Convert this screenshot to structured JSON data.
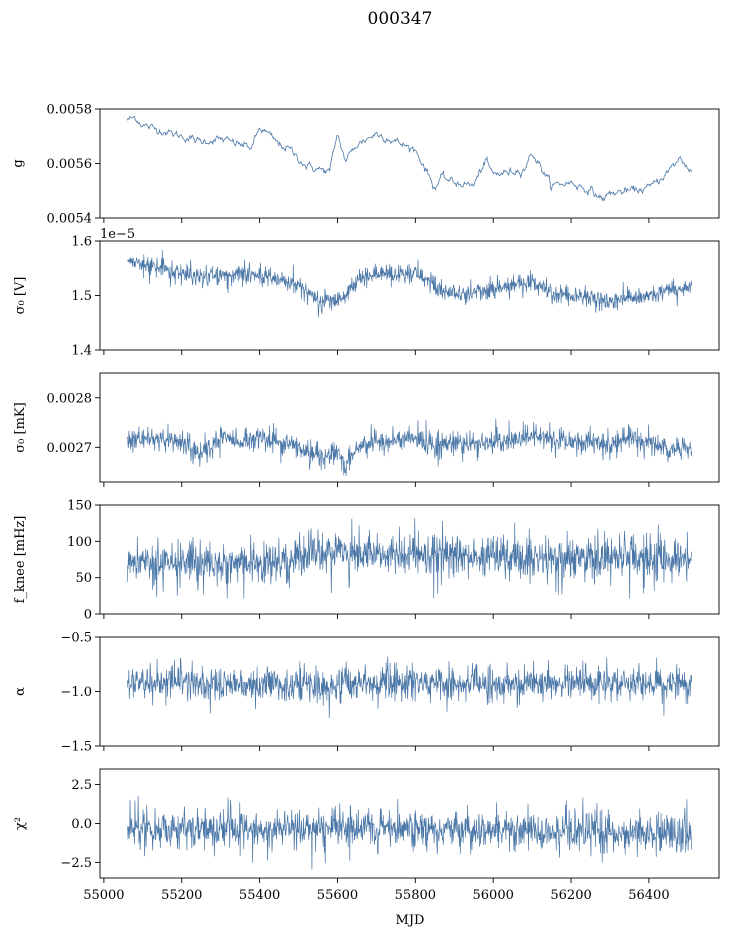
{
  "figure": {
    "title": "000347",
    "xlabel": "MJD",
    "xlim": [
      54990,
      56580
    ],
    "xticks": [
      "55000",
      "55200",
      "55400",
      "55600",
      "55800",
      "56000",
      "56200",
      "56400"
    ],
    "series_color": "#4c78a8"
  },
  "chart_data": [
    {
      "type": "line",
      "ylabel": "g",
      "ylim": [
        0.0054,
        0.0058
      ],
      "yticks": [
        "0.0054",
        "0.0056",
        "0.0058"
      ],
      "offset_text": "",
      "noise": 6e-06,
      "x": [
        55060,
        55080,
        55100,
        55150,
        55200,
        55250,
        55300,
        55350,
        55380,
        55400,
        55420,
        55450,
        55480,
        55520,
        55550,
        55580,
        55600,
        55620,
        55650,
        55700,
        55750,
        55800,
        55830,
        55850,
        55870,
        55900,
        55950,
        55980,
        56000,
        56050,
        56080,
        56100,
        56150,
        56200,
        56250,
        56280,
        56300,
        56350,
        56400,
        56450,
        56480,
        56510
      ],
      "y": [
        0.00576,
        0.00577,
        0.00574,
        0.00572,
        0.0057,
        0.00568,
        0.00569,
        0.00567,
        0.00566,
        0.00573,
        0.00571,
        0.00567,
        0.00565,
        0.00559,
        0.00558,
        0.00557,
        0.00571,
        0.00561,
        0.00567,
        0.00571,
        0.00568,
        0.00565,
        0.00557,
        0.00551,
        0.00555,
        0.00553,
        0.00552,
        0.00561,
        0.00556,
        0.00557,
        0.00558,
        0.00564,
        0.00552,
        0.00553,
        0.0055,
        0.00547,
        0.00549,
        0.0055,
        0.00551,
        0.00557,
        0.00562,
        0.00557
      ]
    },
    {
      "type": "line",
      "ylabel": "σ₀ [V]",
      "ylim": [
        1.4,
        1.6
      ],
      "yticks": [
        "1.4",
        "1.5",
        "1.6"
      ],
      "offset_text": "1e−5",
      "noise": 0.008,
      "x": [
        55060,
        55100,
        55150,
        55200,
        55250,
        55300,
        55350,
        55400,
        55450,
        55500,
        55550,
        55600,
        55620,
        55650,
        55700,
        55750,
        55800,
        55850,
        55870,
        55900,
        55950,
        56000,
        56050,
        56100,
        56150,
        56200,
        56250,
        56300,
        56350,
        56400,
        56450,
        56510
      ],
      "y": [
        1.565,
        1.558,
        1.548,
        1.54,
        1.532,
        1.537,
        1.54,
        1.54,
        1.528,
        1.52,
        1.49,
        1.495,
        1.5,
        1.53,
        1.54,
        1.54,
        1.54,
        1.52,
        1.505,
        1.505,
        1.505,
        1.51,
        1.52,
        1.525,
        1.5,
        1.5,
        1.5,
        1.49,
        1.495,
        1.5,
        1.51,
        1.515
      ]
    },
    {
      "type": "line",
      "ylabel": "σ₀ [mK]",
      "ylim": [
        0.00263,
        0.00285
      ],
      "yticks": [
        "0.0027",
        "0.0028"
      ],
      "offset_text": "",
      "noise": 1.1e-05,
      "x": [
        55060,
        55100,
        55200,
        55250,
        55300,
        55350,
        55400,
        55450,
        55500,
        55550,
        55600,
        55620,
        55650,
        55700,
        55800,
        55850,
        55900,
        55950,
        56000,
        56100,
        56200,
        56280,
        56300,
        56350,
        56400,
        56450,
        56510
      ],
      "y": [
        0.00272,
        0.00272,
        0.00271,
        0.00268,
        0.00272,
        0.00271,
        0.00272,
        0.00271,
        0.0027,
        0.00268,
        0.00269,
        0.00266,
        0.0027,
        0.00271,
        0.00272,
        0.0027,
        0.00271,
        0.00271,
        0.00271,
        0.00272,
        0.00271,
        0.00271,
        0.0027,
        0.00272,
        0.00271,
        0.0027,
        0.0027
      ]
    },
    {
      "type": "line",
      "ylabel": "f_knee [mHz]",
      "ylim": [
        0,
        150
      ],
      "yticks": [
        "0",
        "50",
        "100",
        "150"
      ],
      "offset_text": "",
      "noise": 14,
      "x": [
        55060,
        55200,
        55400,
        55500,
        55580,
        55620,
        55700,
        55800,
        55900,
        56000,
        56100,
        56200,
        56280,
        56300,
        56400,
        56510
      ],
      "y": [
        68,
        70,
        72,
        78,
        82,
        86,
        84,
        82,
        80,
        80,
        78,
        76,
        76,
        80,
        76,
        74
      ]
    },
    {
      "type": "line",
      "ylabel": "α",
      "ylim": [
        -1.5,
        -0.5
      ],
      "yticks": [
        "−1.5",
        "−1.0",
        "−0.5"
      ],
      "offset_text": "",
      "noise": 0.07,
      "x": [
        55060,
        55200,
        55400,
        55600,
        55800,
        56000,
        56200,
        56300,
        56400,
        56510
      ],
      "y": [
        -0.93,
        -0.92,
        -0.94,
        -0.94,
        -0.93,
        -0.93,
        -0.92,
        -0.92,
        -0.93,
        -0.93
      ]
    },
    {
      "type": "line",
      "ylabel": "χ²",
      "ylim": [
        -3.5,
        3.5
      ],
      "yticks": [
        "−2.5",
        "0.0",
        "2.5"
      ],
      "offset_text": "",
      "noise": 0.55,
      "x": [
        55060,
        55300,
        55600,
        55900,
        56200,
        56510
      ],
      "y": [
        -0.4,
        -0.3,
        -0.3,
        -0.4,
        -0.5,
        -0.6
      ]
    }
  ]
}
